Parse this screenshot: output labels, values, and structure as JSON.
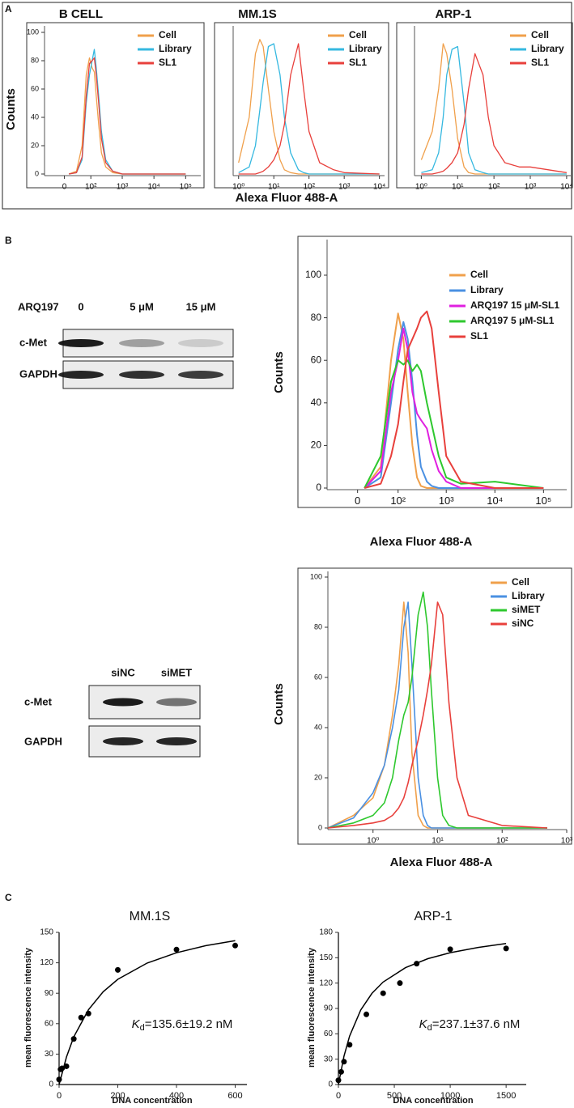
{
  "panels": [
    {
      "label": "A",
      "x_label": "Alexa Fluor 488-A",
      "y_label": "Counts"
    },
    {
      "label": "B"
    },
    {
      "label": "C"
    }
  ],
  "blots": [
    {
      "treatment_label": "ARQ197",
      "lanes": [
        "0",
        "5 μM",
        "15 μM"
      ],
      "rows": [
        "c-Met",
        "GAPDH"
      ]
    },
    {
      "lanes": [
        "siNC",
        "siMET"
      ],
      "rows": [
        "c-Met",
        "GAPDH"
      ]
    }
  ],
  "chart_data": [
    {
      "type": "line",
      "title": "B CELL",
      "xscale": "biex",
      "xlim": [
        -60,
        300000
      ],
      "ylim": [
        0,
        100
      ],
      "xticks": [
        0,
        {
          "value": 100,
          "label": "10²"
        },
        {
          "value": 1000,
          "label": "10³"
        },
        {
          "value": 10000,
          "label": "10⁴"
        },
        {
          "value": 100000,
          "label": "10⁵"
        }
      ],
      "yticks": [
        0,
        20,
        40,
        60,
        80,
        100
      ],
      "legend": "upper right",
      "x": [
        10,
        30,
        50,
        70,
        90,
        110,
        130,
        150,
        180,
        220,
        300,
        500,
        1000,
        100000
      ],
      "series": [
        {
          "name": "Cell",
          "color": "#f0a04b",
          "values": [
            0,
            2,
            20,
            70,
            82,
            75,
            72,
            55,
            35,
            15,
            5,
            1,
            0,
            0
          ]
        },
        {
          "name": "Library",
          "color": "#35b8e0",
          "values": [
            0,
            1,
            10,
            50,
            70,
            80,
            88,
            75,
            55,
            30,
            10,
            2,
            0,
            0
          ]
        },
        {
          "name": "SL1",
          "color": "#e8403c",
          "values": [
            0,
            1,
            12,
            55,
            78,
            80,
            82,
            70,
            50,
            25,
            8,
            2,
            0,
            0
          ]
        }
      ]
    },
    {
      "type": "line",
      "title": "MM.1S",
      "xscale": "log",
      "xlim": [
        0.7,
        14000
      ],
      "ylim": [
        0,
        100
      ],
      "xticks": [
        {
          "value": 1,
          "label": "10⁰"
        },
        {
          "value": 10,
          "label": "10¹"
        },
        {
          "value": 100,
          "label": "10²"
        },
        {
          "value": 1000,
          "label": "10³"
        },
        {
          "value": 10000,
          "label": "10⁴"
        }
      ],
      "legend": "upper right",
      "x": [
        1,
        2,
        3,
        4,
        5,
        7,
        10,
        15,
        20,
        30,
        50,
        70,
        100,
        200,
        500,
        1000,
        10000
      ],
      "series": [
        {
          "name": "Cell",
          "color": "#f0a04b",
          "values": [
            8,
            40,
            85,
            95,
            90,
            60,
            30,
            10,
            3,
            1,
            0,
            0,
            0,
            0,
            0,
            0,
            0
          ]
        },
        {
          "name": "Library",
          "color": "#35b8e0",
          "values": [
            1,
            5,
            20,
            45,
            65,
            90,
            92,
            70,
            40,
            15,
            3,
            1,
            0,
            0,
            0,
            0,
            0
          ]
        },
        {
          "name": "SL1",
          "color": "#e8403c",
          "values": [
            0,
            0,
            0,
            1,
            2,
            5,
            10,
            20,
            35,
            70,
            92,
            60,
            30,
            8,
            3,
            1,
            0
          ]
        }
      ]
    },
    {
      "type": "line",
      "title": "ARP-1",
      "xscale": "log",
      "xlim": [
        0.65,
        13000
      ],
      "ylim": [
        0,
        100
      ],
      "xticks": [
        {
          "value": 1,
          "label": "10⁰"
        },
        {
          "value": 10,
          "label": "10¹"
        },
        {
          "value": 100,
          "label": "10²"
        },
        {
          "value": 1000,
          "label": "10³"
        },
        {
          "value": 10000,
          "label": "10⁴"
        }
      ],
      "legend": "upper right",
      "x": [
        1,
        2,
        3,
        4,
        5,
        7,
        10,
        15,
        20,
        30,
        50,
        70,
        100,
        200,
        500,
        1000,
        10000
      ],
      "series": [
        {
          "name": "Cell",
          "color": "#f0a04b",
          "values": [
            10,
            30,
            60,
            92,
            85,
            60,
            25,
            5,
            1,
            0,
            0,
            0,
            0,
            0,
            0,
            0,
            0
          ]
        },
        {
          "name": "Library",
          "color": "#35b8e0",
          "values": [
            1,
            3,
            15,
            40,
            70,
            88,
            90,
            50,
            15,
            3,
            1,
            0,
            0,
            0,
            0,
            0,
            0
          ]
        },
        {
          "name": "SL1",
          "color": "#e8403c",
          "values": [
            0,
            0,
            1,
            2,
            4,
            8,
            15,
            35,
            60,
            85,
            70,
            40,
            20,
            8,
            5,
            5,
            1
          ]
        }
      ]
    },
    {
      "type": "line",
      "xscale": "biex",
      "xlim": [
        -60,
        300000
      ],
      "ylim": [
        0,
        100
      ],
      "x_label": "Alexa Fluor 488-A",
      "y_label": "Counts",
      "xticks": [
        0,
        {
          "value": 100,
          "label": "10²"
        },
        {
          "value": 1000,
          "label": "10³"
        },
        {
          "value": 10000,
          "label": "10⁴"
        },
        {
          "value": 100000,
          "label": "10⁵"
        }
      ],
      "yticks": [
        0,
        20,
        40,
        60,
        80,
        100
      ],
      "legend": "upper right",
      "x": [
        10,
        40,
        70,
        100,
        130,
        160,
        200,
        250,
        300,
        400,
        500,
        700,
        1000,
        2000,
        10000,
        100000
      ],
      "series": [
        {
          "name": "Cell",
          "color": "#f0a04b",
          "values": [
            0,
            10,
            60,
            82,
            70,
            45,
            20,
            5,
            1,
            0,
            0,
            0,
            0,
            0,
            0,
            0
          ]
        },
        {
          "name": "Library",
          "color": "#4a90e2",
          "values": [
            0,
            5,
            40,
            65,
            78,
            70,
            50,
            25,
            10,
            3,
            1,
            0,
            0,
            0,
            0,
            0
          ]
        },
        {
          "name": "ARQ197 15 μM-SL1",
          "color": "#e020e0",
          "values": [
            0,
            8,
            45,
            60,
            75,
            65,
            45,
            35,
            32,
            28,
            18,
            8,
            3,
            0,
            0,
            0
          ]
        },
        {
          "name": "ARQ197 5 μM-SL1",
          "color": "#2ec82e",
          "values": [
            0,
            15,
            50,
            60,
            58,
            60,
            55,
            58,
            55,
            40,
            30,
            15,
            5,
            2,
            3,
            0
          ]
        },
        {
          "name": "SL1",
          "color": "#e8403c",
          "values": [
            0,
            2,
            15,
            30,
            50,
            65,
            70,
            75,
            80,
            83,
            75,
            45,
            15,
            3,
            0,
            0
          ]
        }
      ]
    },
    {
      "type": "line",
      "xscale": "log",
      "xlim": [
        0.2,
        1000
      ],
      "ylim": [
        0,
        100
      ],
      "x_label": "Alexa Fluor 488-A",
      "y_label": "Counts",
      "xticks": [
        {
          "value": 1,
          "label": "10⁰"
        },
        {
          "value": 10,
          "label": "10¹"
        },
        {
          "value": 100,
          "label": "10²"
        },
        {
          "value": 1000,
          "label": "10³"
        }
      ],
      "yticks": [
        0,
        20,
        40,
        60,
        80,
        100
      ],
      "legend": "upper right",
      "x": [
        0.2,
        0.5,
        1,
        1.5,
        2,
        2.5,
        3,
        3.5,
        4,
        5,
        6,
        7,
        8,
        10,
        12,
        15,
        20,
        30,
        100,
        500
      ],
      "series": [
        {
          "name": "Cell",
          "color": "#f0a04b",
          "values": [
            0,
            5,
            12,
            25,
            45,
            65,
            90,
            70,
            30,
            5,
            1,
            0,
            0,
            0,
            0,
            0,
            0,
            0,
            0,
            0
          ]
        },
        {
          "name": "Library",
          "color": "#4a90e2",
          "values": [
            0,
            4,
            14,
            25,
            40,
            55,
            80,
            90,
            65,
            20,
            5,
            1,
            0,
            0,
            0,
            0,
            0,
            0,
            0,
            0
          ]
        },
        {
          "name": "siMET",
          "color": "#2ec82e",
          "values": [
            0,
            2,
            5,
            10,
            20,
            35,
            45,
            50,
            60,
            85,
            94,
            80,
            55,
            20,
            5,
            1,
            0,
            0,
            0,
            0
          ]
        },
        {
          "name": "siNC",
          "color": "#e8403c",
          "values": [
            0,
            1,
            2,
            3,
            5,
            8,
            12,
            18,
            25,
            35,
            45,
            55,
            65,
            90,
            85,
            50,
            20,
            5,
            1,
            0
          ]
        }
      ]
    },
    {
      "type": "scatter",
      "title": "MM.1S",
      "x_label": "DNA concentration",
      "y_label": "mean fluorescence intensity",
      "xlim": [
        0,
        640
      ],
      "ylim": [
        0,
        150
      ],
      "xticks": [
        0,
        200,
        400,
        600
      ],
      "yticks": [
        0,
        30,
        60,
        90,
        120,
        150
      ],
      "color": "#000000",
      "x": [
        0,
        5,
        10,
        25,
        50,
        75,
        100,
        200,
        400,
        600
      ],
      "values": [
        5,
        15,
        16,
        18,
        45,
        66,
        70,
        113,
        133,
        137
      ],
      "fit": {
        "x": [
          0,
          25,
          50,
          100,
          150,
          200,
          300,
          400,
          500,
          600
        ],
        "values": [
          0,
          27.1,
          46.9,
          73.8,
          91.4,
          103.7,
          119.8,
          129.9,
          136.9,
          141.9
        ]
      },
      "annotation": {
        "symbol": "K",
        "subscript": "d",
        "text": "=135.6±19.2 nM"
      }
    },
    {
      "type": "scatter",
      "title": "ARP-1",
      "x_label": "DNA concentration",
      "y_label": "mean fluorescence intensity",
      "xlim": [
        0,
        1680
      ],
      "ylim": [
        0,
        180
      ],
      "xticks": [
        0,
        500,
        1000,
        1500
      ],
      "yticks": [
        0,
        30,
        60,
        90,
        120,
        150,
        180
      ],
      "color": "#000000",
      "x": [
        0,
        25,
        50,
        100,
        250,
        400,
        550,
        700,
        1000,
        1500
      ],
      "values": [
        5,
        15,
        27,
        47,
        83,
        108,
        120,
        143,
        160,
        161
      ],
      "fit": {
        "x": [
          0,
          50,
          100,
          200,
          300,
          400,
          600,
          800,
          1000,
          1250,
          1500
        ],
        "values": [
          0,
          33.6,
          57.3,
          88.3,
          107.8,
          121.2,
          138.3,
          148.9,
          156.0,
          162.2,
          166.8
        ]
      },
      "annotation": {
        "symbol": "K",
        "subscript": "d",
        "text": "=237.1±37.6 nM"
      }
    }
  ]
}
